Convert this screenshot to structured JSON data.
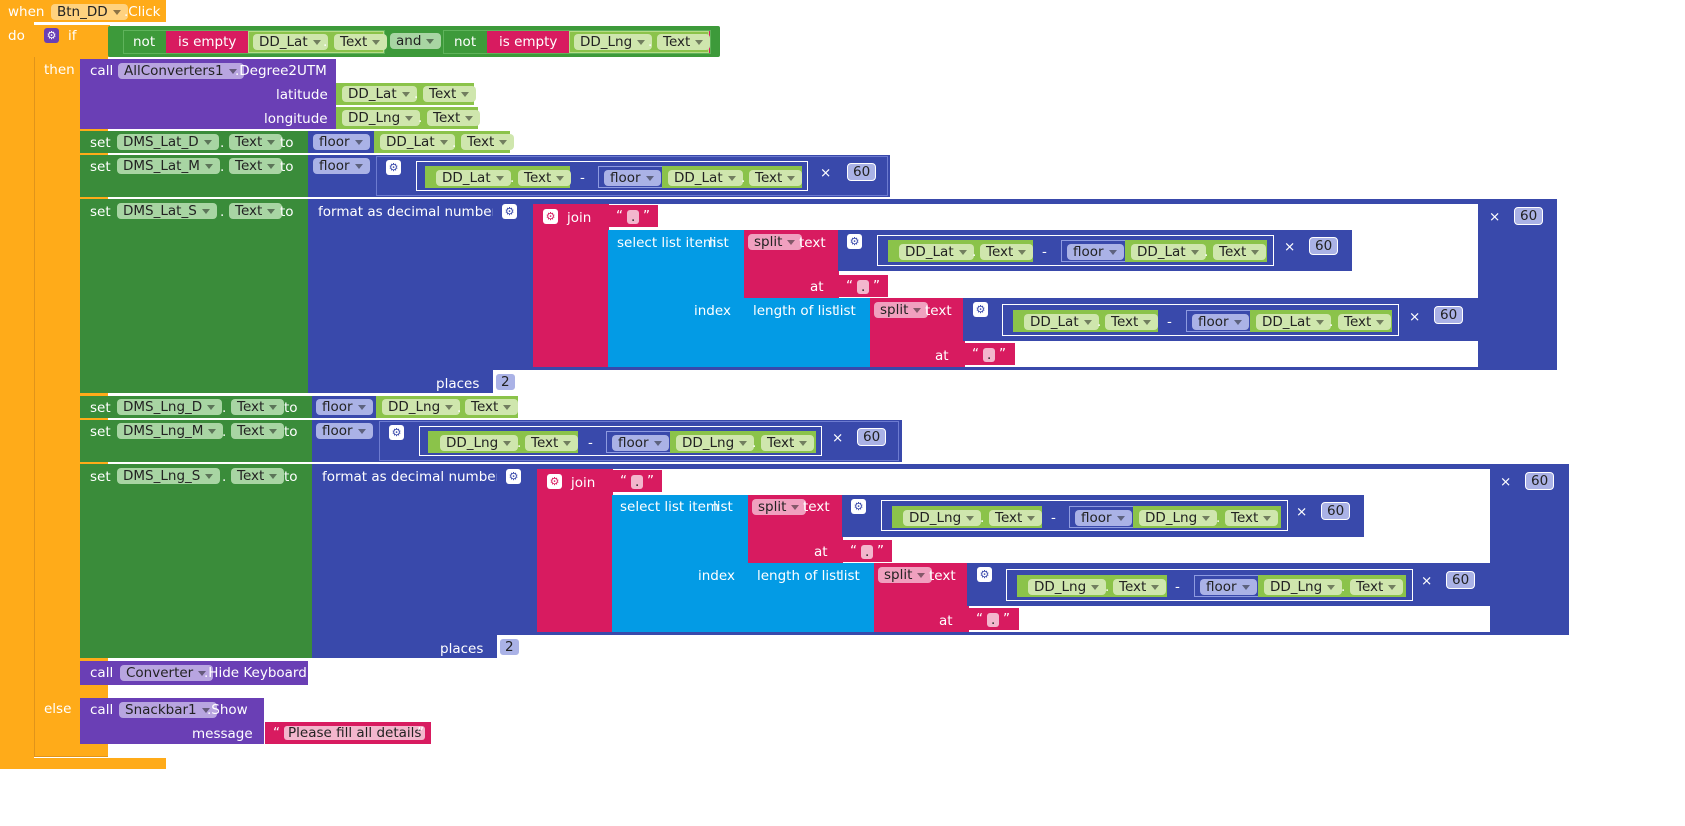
{
  "event": {
    "when_label": "when",
    "component": "Btn_DD",
    "event_name": ".Click",
    "do_label": "do"
  },
  "if_block": {
    "if_label": "if",
    "then_label": "then",
    "else_label": "else"
  },
  "keywords": {
    "not": "not",
    "is_empty": "is empty",
    "and": "and",
    "call": "call",
    "set": "set",
    "to": "to",
    "floor": "floor",
    "format_decimal": "format as decimal number",
    "places": "places",
    "join": "join",
    "select_list_item": "select list item",
    "list": "list",
    "split": "split",
    "text": "text",
    "at": "at",
    "index": "index",
    "length_of_list": "length of list",
    "minus": "-",
    "times": "×",
    "dot": ".",
    "open_quote": "“",
    "close_quote": "”"
  },
  "components": {
    "dd_lat": "DD_Lat",
    "dd_lng": "DD_Lng",
    "text_prop": "Text",
    "all_converters": "AllConverters1",
    "degree2utm": ".Degree2UTM",
    "latitude": "latitude",
    "longitude": "longitude",
    "dms_lat_d": "DMS_Lat_D",
    "dms_lat_m": "DMS_Lat_M",
    "dms_lat_s": "DMS_Lat_S",
    "dms_lng_d": "DMS_Lng_D",
    "dms_lng_m": "DMS_Lng_M",
    "dms_lng_s": "DMS_Lng_S",
    "converter": "Converter",
    "hide_keyboard": ".Hide Keyboard",
    "snackbar": "Snackbar1",
    "show": ".Show",
    "message": "message"
  },
  "literals": {
    "sixty": "60",
    "two": "2",
    "dot_string": ".",
    "message_text": "Please fill all details"
  },
  "colors": {
    "event": "#FFAB19",
    "logic": "#3D9A3A",
    "set": "#3A8C3A",
    "procedure": "#6A3FB5",
    "math": "#3949AB",
    "text": "#D81B60",
    "list": "#039BE5",
    "component_attr": "#8BC34A"
  },
  "icons": {
    "mutator": "gear-icon",
    "dropdown": "chevron-down-icon"
  }
}
